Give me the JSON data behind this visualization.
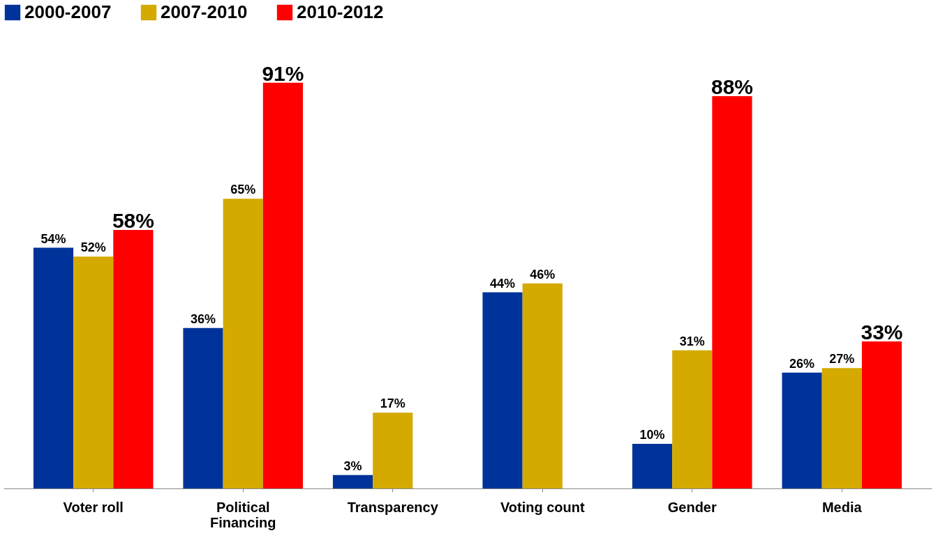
{
  "chart_data": {
    "type": "bar",
    "categories": [
      "Voter roll",
      "Political Financing",
      "Transparency",
      "Voting count",
      "Gender",
      "Media"
    ],
    "series": [
      {
        "name": "2000-2007",
        "color": "#003399",
        "values": [
          54,
          36,
          3,
          44,
          10,
          26
        ],
        "value_labels": [
          "54%",
          "36%",
          "3%",
          "44%",
          "10%",
          "26%"
        ]
      },
      {
        "name": "2007-2010",
        "color": "#d4aa00",
        "values": [
          52,
          65,
          17,
          46,
          31,
          27
        ],
        "value_labels": [
          "52%",
          "65%",
          "17%",
          "46%",
          "31%",
          "27%"
        ]
      },
      {
        "name": "2010-2012",
        "color": "#ff0000",
        "values": [
          58,
          91,
          null,
          null,
          88,
          33
        ],
        "value_labels": [
          "58%",
          "91%",
          null,
          null,
          "88%",
          "33%"
        ]
      }
    ],
    "legend": "top",
    "grid": false
  }
}
